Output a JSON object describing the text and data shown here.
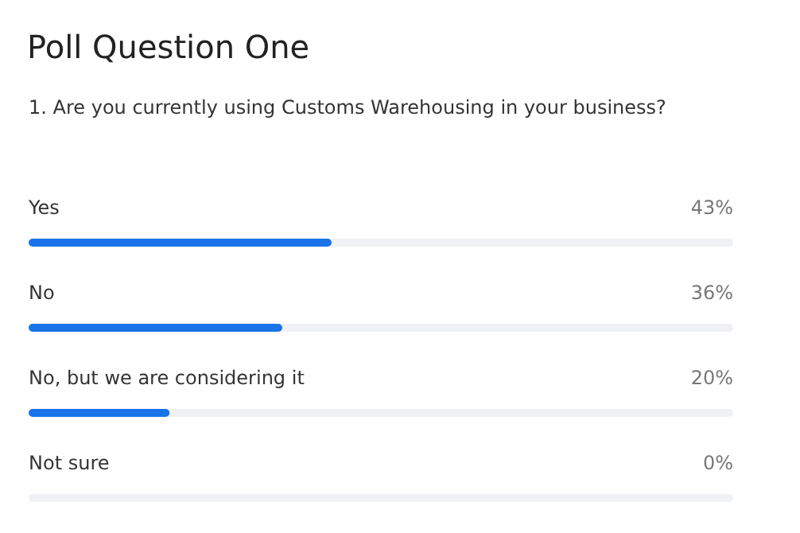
{
  "chart_data": {
    "type": "bar",
    "orientation": "horizontal",
    "title": "Poll Question One",
    "subtitle": "1. Are you currently using Customs Warehousing in your business?",
    "categories": [
      "Yes",
      "No",
      "No, but we are considering it",
      "Not sure"
    ],
    "values": [
      43,
      36,
      20,
      0
    ],
    "value_labels": [
      "43%",
      "36%",
      "20%",
      "0%"
    ],
    "color": "#1a73e8",
    "xlim": [
      0,
      100
    ]
  }
}
